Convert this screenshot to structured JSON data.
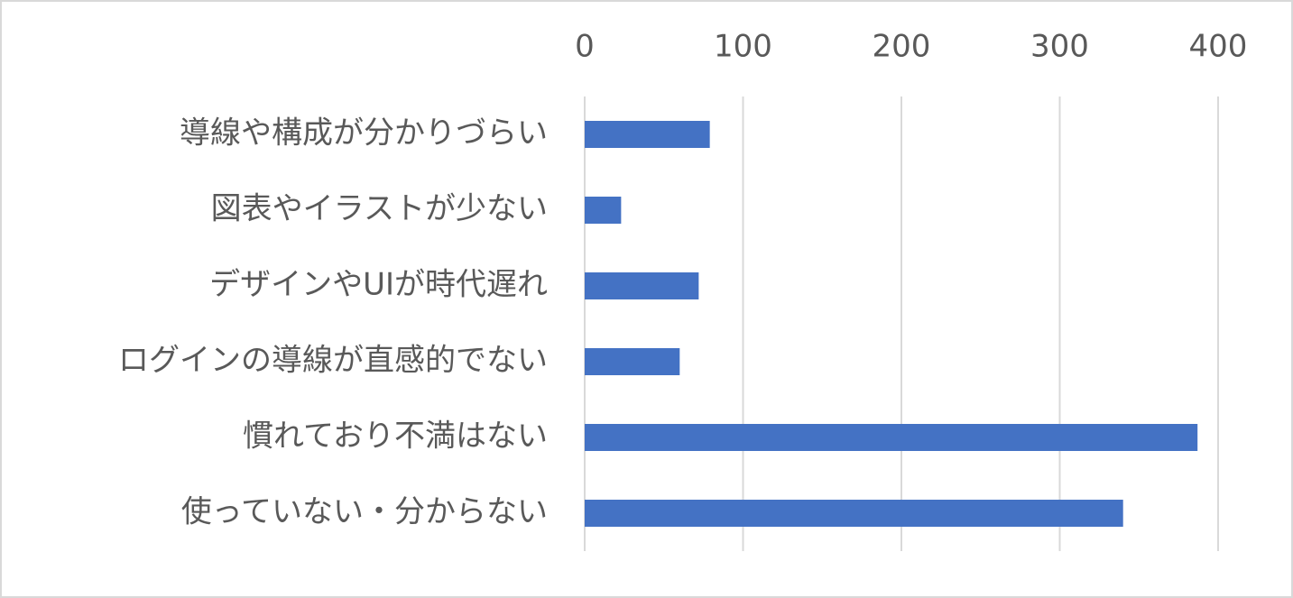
{
  "chart_data": {
    "type": "bar",
    "orientation": "horizontal",
    "categories": [
      "導線や構成が分かりづらい",
      "図表やイラストが少ない",
      "デザインやUIが時代遅れ",
      "ログインの導線が直感的でない",
      "慣れており不満はない",
      "使っていない・分からない"
    ],
    "values": [
      79,
      23,
      72,
      60,
      387,
      340
    ],
    "color": "#4472c4",
    "xlim": [
      0,
      400
    ],
    "xticks": [
      0,
      100,
      200,
      300,
      400
    ],
    "grid": true,
    "x_axis_position": "top"
  }
}
